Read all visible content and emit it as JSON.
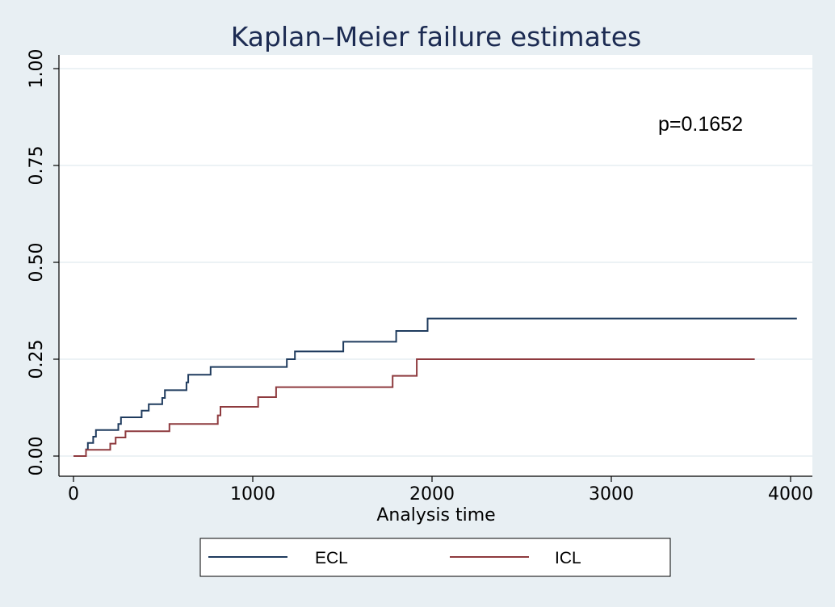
{
  "chart_data": {
    "type": "line",
    "step": true,
    "title": "Kaplan–Meier failure estimates",
    "xlabel": "Analysis time",
    "ylabel": "",
    "xlim": [
      0,
      4000
    ],
    "ylim": [
      0,
      1
    ],
    "x_ticks": [
      "0",
      "1000",
      "2000",
      "3000",
      "4000"
    ],
    "x_tick_values": [
      0,
      1000,
      2000,
      3000,
      4000
    ],
    "y_ticks": [
      "0.00",
      "0.25",
      "0.50",
      "0.75",
      "1.00"
    ],
    "y_tick_values": [
      0,
      0.25,
      0.5,
      0.75,
      1.0
    ],
    "grid": true,
    "legend_position": "bottom",
    "annotation": "p=0.1652",
    "series": [
      {
        "name": "ECL",
        "color": "#1f3b5e",
        "points": [
          [
            0,
            0
          ],
          [
            70,
            0
          ],
          [
            70,
            0.017
          ],
          [
            80,
            0.017
          ],
          [
            80,
            0.034
          ],
          [
            110,
            0.034
          ],
          [
            110,
            0.05
          ],
          [
            125,
            0.05
          ],
          [
            125,
            0.067
          ],
          [
            250,
            0.067
          ],
          [
            250,
            0.083
          ],
          [
            265,
            0.083
          ],
          [
            265,
            0.1
          ],
          [
            380,
            0.1
          ],
          [
            380,
            0.117
          ],
          [
            420,
            0.117
          ],
          [
            420,
            0.134
          ],
          [
            495,
            0.134
          ],
          [
            495,
            0.15
          ],
          [
            510,
            0.15
          ],
          [
            510,
            0.17
          ],
          [
            630,
            0.17
          ],
          [
            630,
            0.19
          ],
          [
            640,
            0.19
          ],
          [
            640,
            0.21
          ],
          [
            765,
            0.21
          ],
          [
            765,
            0.23
          ],
          [
            1190,
            0.23
          ],
          [
            1190,
            0.25
          ],
          [
            1235,
            0.25
          ],
          [
            1235,
            0.27
          ],
          [
            1505,
            0.27
          ],
          [
            1505,
            0.295
          ],
          [
            1800,
            0.295
          ],
          [
            1800,
            0.323
          ],
          [
            1975,
            0.323
          ],
          [
            1975,
            0.355
          ],
          [
            4035,
            0.355
          ]
        ]
      },
      {
        "name": "ICL",
        "color": "#8e3a3e",
        "points": [
          [
            0,
            0
          ],
          [
            70,
            0
          ],
          [
            70,
            0.016
          ],
          [
            205,
            0.016
          ],
          [
            205,
            0.032
          ],
          [
            235,
            0.032
          ],
          [
            235,
            0.048
          ],
          [
            290,
            0.048
          ],
          [
            290,
            0.064
          ],
          [
            535,
            0.064
          ],
          [
            535,
            0.083
          ],
          [
            805,
            0.083
          ],
          [
            805,
            0.105
          ],
          [
            820,
            0.105
          ],
          [
            820,
            0.127
          ],
          [
            1030,
            0.127
          ],
          [
            1030,
            0.152
          ],
          [
            1130,
            0.152
          ],
          [
            1130,
            0.178
          ],
          [
            1780,
            0.178
          ],
          [
            1780,
            0.207
          ],
          [
            1915,
            0.207
          ],
          [
            1915,
            0.25
          ],
          [
            3800,
            0.25
          ]
        ]
      }
    ]
  }
}
